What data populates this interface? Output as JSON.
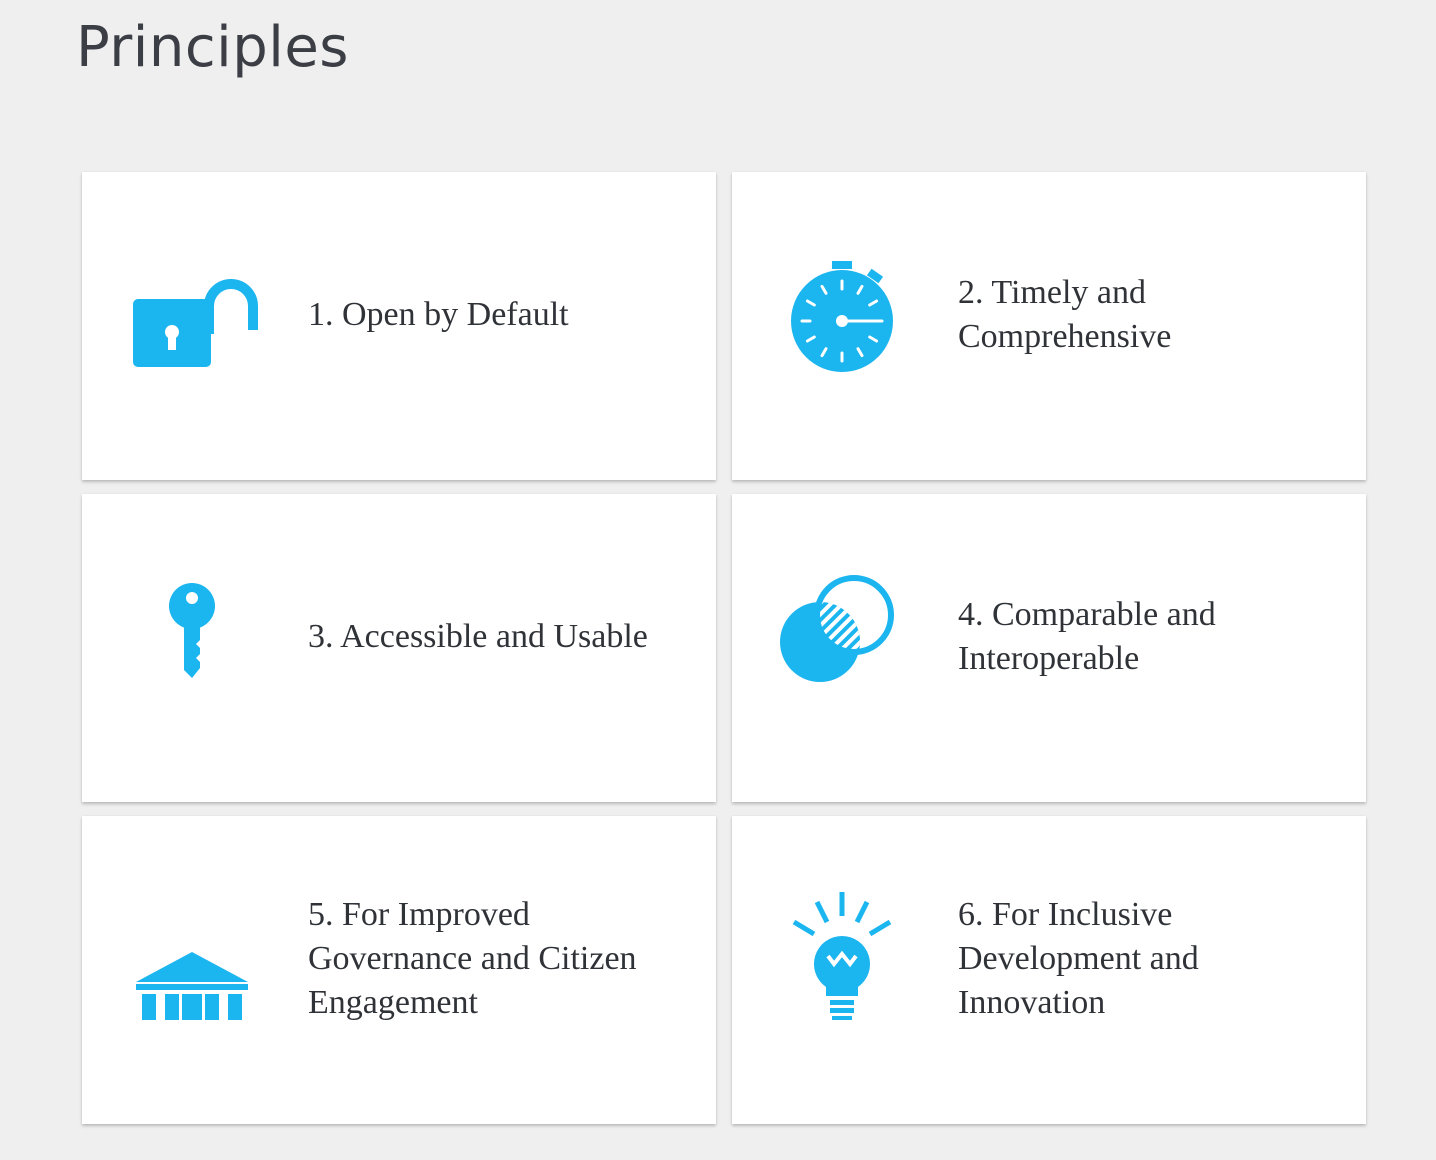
{
  "page": {
    "title": "Principles"
  },
  "theme": {
    "accent": "#1bb5ef",
    "background": "#efefef",
    "card": "#ffffff",
    "text": "#2f3237"
  },
  "principles": [
    {
      "label": "1. Open by Default",
      "icon": "unlocked-padlock-icon"
    },
    {
      "label": "2. Timely and Comprehensive",
      "icon": "stopwatch-icon"
    },
    {
      "label": "3. Accessible and Usable",
      "icon": "key-icon"
    },
    {
      "label": "4. Comparable and Interoperable",
      "icon": "overlapping-circles-icon"
    },
    {
      "label": "5. For Improved Governance and Citizen Engagement",
      "icon": "government-building-icon"
    },
    {
      "label": "6. For Inclusive Development and Innovation",
      "icon": "lightbulb-icon"
    }
  ]
}
